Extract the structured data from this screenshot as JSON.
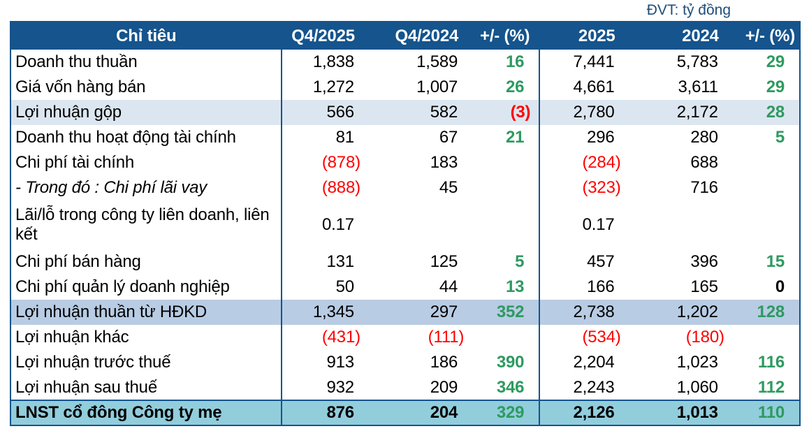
{
  "unit_label": "ĐVT: tỷ đồng",
  "colors": {
    "header_bg": "#15548C",
    "border": "#15548C",
    "row_light": "#DCE6F1",
    "row_medium": "#B8CCE4",
    "row_total": "#92CDDC",
    "positive": "#2E9A60",
    "negative": "#FF0000",
    "unit_text": "#1F4E79"
  },
  "table": {
    "columns": [
      "Chỉ tiêu",
      "Q4/2025",
      "Q4/2024",
      "+/- (%)",
      "2025",
      "2024",
      "+/- (%)"
    ],
    "rows": [
      {
        "label": "Doanh thu thuần",
        "values": [
          "1,838",
          "1,589",
          "16",
          "7,441",
          "5,783",
          "29"
        ],
        "style": "normal",
        "italic": false
      },
      {
        "label": "Giá vốn hàng bán",
        "values": [
          "1,272",
          "1,007",
          "26",
          "4,661",
          "3,611",
          "29"
        ],
        "style": "normal",
        "italic": false
      },
      {
        "label": "Lợi nhuận gộp",
        "values": [
          "566",
          "582",
          "(3)",
          "2,780",
          "2,172",
          "28"
        ],
        "style": "light",
        "italic": false
      },
      {
        "label": "Doanh thu hoạt động tài chính",
        "values": [
          "81",
          "67",
          "21",
          "296",
          "280",
          "5"
        ],
        "style": "normal",
        "italic": false
      },
      {
        "label": "Chi phí tài chính",
        "values": [
          "(878)",
          "183",
          "",
          "(284)",
          "688",
          ""
        ],
        "style": "normal",
        "italic": false
      },
      {
        "label": "- Trong đó : Chi phí lãi vay",
        "values": [
          "(888)",
          "45",
          "",
          "(323)",
          "716",
          ""
        ],
        "style": "normal",
        "italic": true
      },
      {
        "label": "Lãi/lỗ trong công ty liên doanh, liên kết",
        "values": [
          "0.17",
          "",
          "",
          "0.17",
          "",
          ""
        ],
        "style": "tall",
        "italic": false
      },
      {
        "label": "Chi phí bán hàng",
        "values": [
          "131",
          "125",
          "5",
          "457",
          "396",
          "15"
        ],
        "style": "normal",
        "italic": false
      },
      {
        "label": "Chi phí quản lý doanh nghiệp",
        "values": [
          "50",
          "44",
          "13",
          "166",
          "165",
          "0"
        ],
        "style": "normal",
        "italic": false
      },
      {
        "label": "Lợi nhuận thuần từ HĐKD",
        "values": [
          "1,345",
          "297",
          "352",
          "2,738",
          "1,202",
          "128"
        ],
        "style": "medium",
        "italic": false
      },
      {
        "label": "Lợi nhuận khác",
        "values": [
          "(431)",
          "(111)",
          "",
          "(534)",
          "(180)",
          ""
        ],
        "style": "normal",
        "italic": false
      },
      {
        "label": "Lợi nhuận trước thuế",
        "values": [
          "913",
          "186",
          "390",
          "2,204",
          "1,023",
          "116"
        ],
        "style": "normal",
        "italic": false
      },
      {
        "label": "Lợi nhuận sau thuế",
        "values": [
          "932",
          "209",
          "346",
          "2,243",
          "1,060",
          "112"
        ],
        "style": "normal",
        "italic": false
      },
      {
        "label": "LNST cổ đông Công ty mẹ",
        "values": [
          "876",
          "204",
          "329",
          "2,126",
          "1,013",
          "110"
        ],
        "style": "total",
        "italic": false
      }
    ]
  }
}
